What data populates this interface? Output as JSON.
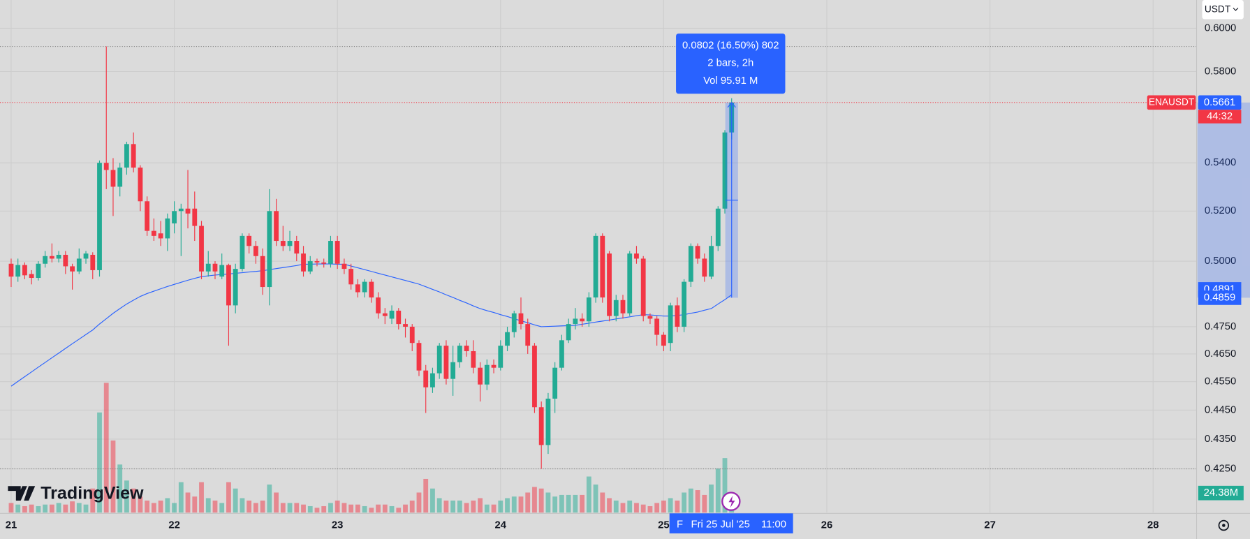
{
  "chart_data": {
    "type": "candlestick",
    "symbol": "ENAUSDT",
    "currency": "USDT",
    "brand": "TradingView",
    "countdown": "44:32",
    "log_scale": true,
    "grid": true,
    "up_color": "#22ab94",
    "down_color": "#f23645",
    "open": [
      0.499,
      0.494,
      0.4985,
      0.495,
      0.4935,
      0.499,
      0.502,
      0.501,
      0.5025,
      0.498,
      0.496,
      0.501,
      0.5025,
      0.4965,
      0.54,
      0.537,
      0.53,
      0.538,
      0.548,
      0.538,
      0.524,
      0.512,
      0.511,
      0.509,
      0.515,
      0.52,
      0.521,
      0.521,
      0.514,
      0.496,
      0.499,
      0.494,
      0.4985,
      0.483,
      0.497,
      0.51,
      0.506,
      0.502,
      0.49,
      0.52,
      0.508,
      0.506,
      0.508,
      0.503,
      0.496,
      0.5,
      0.4995,
      0.499,
      0.508,
      0.499,
      0.497,
      0.491,
      0.488,
      0.492,
      0.486,
      0.48,
      0.478,
      0.481,
      0.476,
      0.475,
      0.469,
      0.459,
      0.453,
      0.458,
      0.468,
      0.456,
      0.462,
      0.468,
      0.466,
      0.46,
      0.454,
      0.461,
      0.46,
      0.468,
      0.473,
      0.48,
      0.476,
      0.468,
      0.446,
      0.433,
      0.449,
      0.46,
      0.47,
      0.476,
      0.478,
      0.477,
      0.486,
      0.51,
      0.503,
      0.479,
      0.485,
      0.48,
      0.503,
      0.501,
      0.479,
      0.478,
      0.472,
      0.469,
      0.483,
      0.475,
      0.492,
      0.506,
      0.501,
      0.494,
      0.506,
      0.521,
      0.553
    ],
    "high": [
      0.501,
      0.501,
      0.4995,
      0.4965,
      0.5,
      0.504,
      0.507,
      0.504,
      0.504,
      0.499,
      0.505,
      0.504,
      0.5035,
      0.541,
      0.5915,
      0.542,
      0.54,
      0.549,
      0.553,
      0.539,
      0.526,
      0.517,
      0.516,
      0.519,
      0.524,
      0.523,
      0.537,
      0.528,
      0.516,
      0.504,
      0.5,
      0.503,
      0.499,
      0.499,
      0.511,
      0.511,
      0.508,
      0.505,
      0.529,
      0.525,
      0.514,
      0.512,
      0.51,
      0.506,
      0.502,
      0.501,
      0.501,
      0.51,
      0.51,
      0.501,
      0.499,
      0.493,
      0.493,
      0.493,
      0.488,
      0.482,
      0.483,
      0.482,
      0.478,
      0.476,
      0.47,
      0.461,
      0.46,
      0.469,
      0.47,
      0.468,
      0.469,
      0.47,
      0.47,
      0.462,
      0.463,
      0.463,
      0.47,
      0.475,
      0.481,
      0.486,
      0.478,
      0.469,
      0.448,
      0.451,
      0.462,
      0.472,
      0.478,
      0.482,
      0.48,
      0.488,
      0.511,
      0.511,
      0.504,
      0.487,
      0.487,
      0.504,
      0.506,
      0.502,
      0.48,
      0.479,
      0.473,
      0.484,
      0.486,
      0.493,
      0.507,
      0.507,
      0.503,
      0.51,
      0.522,
      0.554,
      0.568
    ],
    "low": [
      0.49,
      0.492,
      0.493,
      0.491,
      0.4925,
      0.4975,
      0.4995,
      0.4995,
      0.495,
      0.489,
      0.495,
      0.499,
      0.493,
      0.494,
      0.529,
      0.518,
      0.526,
      0.535,
      0.536,
      0.52,
      0.51,
      0.508,
      0.506,
      0.504,
      0.511,
      0.502,
      0.513,
      0.508,
      0.493,
      0.494,
      0.493,
      0.493,
      0.468,
      0.48,
      0.496,
      0.503,
      0.499,
      0.487,
      0.483,
      0.506,
      0.504,
      0.504,
      0.5,
      0.494,
      0.495,
      0.498,
      0.4975,
      0.4975,
      0.497,
      0.495,
      0.489,
      0.486,
      0.486,
      0.484,
      0.478,
      0.476,
      0.476,
      0.474,
      0.471,
      0.466,
      0.457,
      0.444,
      0.451,
      0.456,
      0.454,
      0.45,
      0.46,
      0.464,
      0.458,
      0.448,
      0.452,
      0.458,
      0.459,
      0.466,
      0.471,
      0.474,
      0.465,
      0.444,
      0.425,
      0.43,
      0.444,
      0.459,
      0.469,
      0.474,
      0.475,
      0.475,
      0.484,
      0.484,
      0.477,
      0.477,
      0.478,
      0.479,
      0.499,
      0.477,
      0.476,
      0.468,
      0.466,
      0.466,
      0.473,
      0.473,
      0.49,
      0.499,
      0.492,
      0.493,
      0.504,
      0.519,
      0.55
    ],
    "close": [
      0.494,
      0.4985,
      0.4945,
      0.4935,
      0.499,
      0.502,
      0.501,
      0.5025,
      0.498,
      0.496,
      0.501,
      0.503,
      0.4965,
      0.54,
      0.537,
      0.53,
      0.538,
      0.548,
      0.538,
      0.524,
      0.512,
      0.51,
      0.509,
      0.517,
      0.52,
      0.521,
      0.519,
      0.514,
      0.496,
      0.499,
      0.496,
      0.4985,
      0.483,
      0.497,
      0.51,
      0.506,
      0.502,
      0.49,
      0.52,
      0.508,
      0.506,
      0.508,
      0.503,
      0.496,
      0.5,
      0.4995,
      0.499,
      0.508,
      0.499,
      0.497,
      0.491,
      0.488,
      0.492,
      0.486,
      0.48,
      0.479,
      0.481,
      0.476,
      0.475,
      0.469,
      0.459,
      0.453,
      0.458,
      0.468,
      0.456,
      0.462,
      0.468,
      0.466,
      0.46,
      0.454,
      0.461,
      0.46,
      0.468,
      0.473,
      0.48,
      0.476,
      0.468,
      0.446,
      0.433,
      0.449,
      0.46,
      0.47,
      0.476,
      0.478,
      0.477,
      0.486,
      0.51,
      0.486,
      0.479,
      0.485,
      0.48,
      0.503,
      0.501,
      0.479,
      0.478,
      0.472,
      0.468,
      0.483,
      0.475,
      0.492,
      0.506,
      0.501,
      0.494,
      0.506,
      0.521,
      0.553,
      0.5661
    ],
    "volume": [
      12,
      10,
      8,
      10,
      8,
      10,
      10,
      12,
      10,
      14,
      12,
      10,
      30,
      125,
      162,
      90,
      60,
      40,
      30,
      20,
      15,
      12,
      15,
      18,
      12,
      38,
      25,
      20,
      38,
      18,
      15,
      12,
      38,
      30,
      18,
      15,
      12,
      15,
      35,
      25,
      12,
      12,
      12,
      10,
      8,
      6,
      8,
      12,
      15,
      12,
      10,
      10,
      8,
      6,
      10,
      10,
      8,
      6,
      10,
      15,
      25,
      42,
      30,
      18,
      15,
      15,
      15,
      12,
      15,
      18,
      10,
      10,
      15,
      18,
      20,
      20,
      25,
      32,
      30,
      25,
      20,
      22,
      22,
      22,
      22,
      45,
      35,
      25,
      18,
      15,
      12,
      15,
      12,
      10,
      8,
      12,
      15,
      18,
      15,
      25,
      30,
      28,
      22,
      35,
      55,
      68,
      24.38
    ],
    "volume_label": {
      "value": 24.38,
      "label": "24.38M"
    },
    "volume_ylim": [
      0,
      640
    ],
    "ma": {
      "color": "#2962ff",
      "values": [
        0.4534,
        0.4551,
        0.4568,
        0.4585,
        0.4602,
        0.4619,
        0.4636,
        0.4653,
        0.467,
        0.4687,
        0.4704,
        0.4721,
        0.4738,
        0.476,
        0.478,
        0.48,
        0.4818,
        0.4835,
        0.485,
        0.4864,
        0.4875,
        0.4884,
        0.4893,
        0.4902,
        0.491,
        0.4918,
        0.4926,
        0.4933,
        0.494,
        0.4943,
        0.4946,
        0.4948,
        0.495,
        0.4953,
        0.4955,
        0.4958,
        0.496,
        0.4963,
        0.4967,
        0.4971,
        0.4975,
        0.4979,
        0.4983,
        0.4988,
        0.4988,
        0.4989,
        0.4989,
        0.4989,
        0.4988,
        0.4988,
        0.4981,
        0.4974,
        0.4967,
        0.496,
        0.4953,
        0.4946,
        0.4939,
        0.4932,
        0.4925,
        0.4918,
        0.4911,
        0.4901,
        0.4891,
        0.4881,
        0.487,
        0.486,
        0.4849,
        0.4839,
        0.4828,
        0.4818,
        0.481,
        0.4803,
        0.4795,
        0.4788,
        0.478,
        0.4772,
        0.4765,
        0.4757,
        0.475,
        0.4751,
        0.4752,
        0.4753,
        0.4754,
        0.4755,
        0.4759,
        0.4763,
        0.4767,
        0.4771,
        0.4775,
        0.4779,
        0.4783,
        0.4787,
        0.4791,
        0.4795,
        0.4794,
        0.4792,
        0.479,
        0.479,
        0.4792,
        0.4795,
        0.48,
        0.4805,
        0.4812,
        0.4818,
        0.4835,
        0.4852,
        0.487
      ]
    },
    "ylim": [
      0.4107,
      0.6134
    ],
    "yticks": [
      {
        "value": 0.6,
        "label": "0.6000"
      },
      {
        "value": 0.58,
        "label": "0.5800"
      },
      {
        "value": 0.54,
        "label": "0.5400"
      },
      {
        "value": 0.52,
        "label": "0.5200"
      },
      {
        "value": 0.5,
        "label": "0.5000"
      },
      {
        "value": 0.475,
        "label": "0.4750"
      },
      {
        "value": 0.465,
        "label": "0.4650"
      },
      {
        "value": 0.455,
        "label": "0.4550"
      },
      {
        "value": 0.445,
        "label": "0.4450"
      },
      {
        "value": 0.435,
        "label": "0.4350"
      },
      {
        "value": 0.425,
        "label": "0.4250"
      }
    ],
    "xlim": [
      -1.64,
      174.4
    ],
    "xticks": [
      {
        "value": 0,
        "label": "21"
      },
      {
        "value": 24,
        "label": "22"
      },
      {
        "value": 48,
        "label": "23"
      },
      {
        "value": 72,
        "label": "24"
      },
      {
        "value": 96,
        "label": "25"
      },
      {
        "value": 120,
        "label": "26"
      },
      {
        "value": 144,
        "label": "27"
      },
      {
        "value": 168,
        "label": "28"
      }
    ],
    "price_labels": [
      {
        "value": 0.5661,
        "label": "0.5661"
      },
      {
        "value": 0.4891,
        "label": "0.4891"
      },
      {
        "value": 0.4859,
        "label": "0.4859"
      }
    ],
    "measure": {
      "change": "0.0802 (16.50%) 802",
      "bars": "2 bars, 2h",
      "volume": "Vol 95.91 M"
    },
    "crosshair": {
      "prefix": "F",
      "date": "Fri 25 Jul '25",
      "time": "11:00"
    }
  }
}
